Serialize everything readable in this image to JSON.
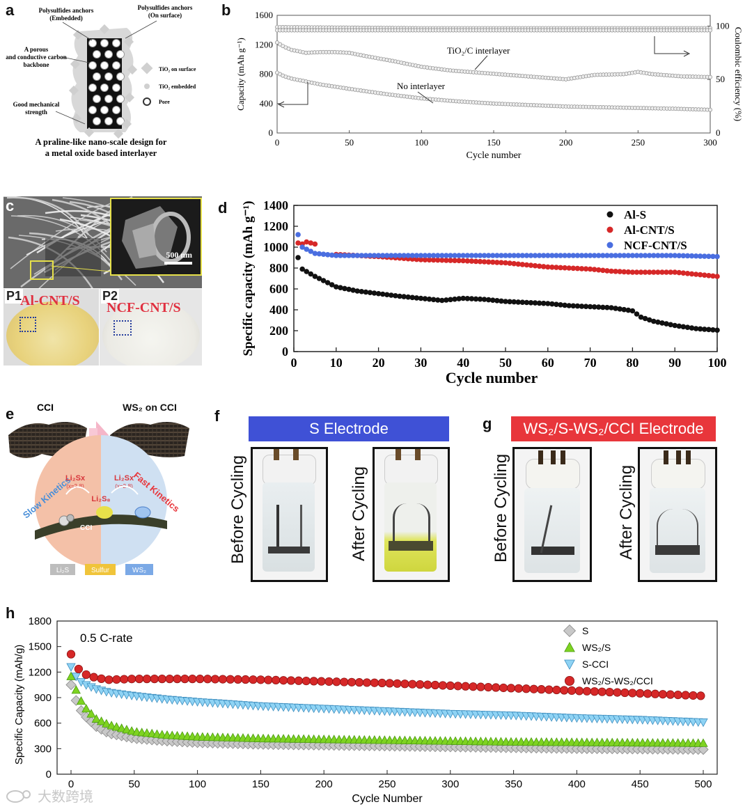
{
  "panels": {
    "a": {
      "letter": "a",
      "labels": {
        "anchors_embedded": "Polysulfides anchors (Embedded)",
        "anchors_surface": "Polysulfides anchors (On surface)",
        "porous_backbone": "A porous and conductive carbon backbone",
        "mechanical": "Good mechanical strength",
        "legend_surface": "TiO₂ on surface",
        "legend_embedded": "TiO₂ embedded",
        "legend_pore": "Pore",
        "caption_line1": "A praline-like nano-scale design for",
        "caption_line2": "a metal oxide based interlayer"
      }
    },
    "b": {
      "letter": "b",
      "annotation_tio2": "TiO₂/C interlayer",
      "annotation_none": "No interlayer"
    },
    "c": {
      "letter": "c",
      "scale_bar": "500 nm",
      "p1": "P1",
      "p2": "P2",
      "p1_text": "Al-CNT/S",
      "p2_text": "NCF-CNT/S"
    },
    "d": {
      "letter": "d"
    },
    "e": {
      "letter": "e",
      "cci": "CCI",
      "ws2_on_cci": "WS₂ on CCI",
      "slow": "Slow Kinetics",
      "fast": "Fast Kinetics",
      "li2sx_left": "Li₂Sx",
      "li2sx_right": "Li₂Sx",
      "x_range_left": "(x=2-8)",
      "x_range_right": "(x=2-8)",
      "li2s8": "Li₂S₈",
      "cci_rod": "CCI",
      "li2s": "Li₂S",
      "sulfur": "Sulfur",
      "ws2": "WS₂"
    },
    "f": {
      "letter": "f",
      "banner": "S Electrode",
      "before": "Before Cycling",
      "after": "After Cycling"
    },
    "g": {
      "letter": "g",
      "banner": "WS₂/S-WS₂/CCI Electrode",
      "before": "Before Cycling",
      "after": "After Cycling"
    },
    "h": {
      "letter": "h",
      "rate": "0.5 C-rate"
    }
  },
  "watermark": "大数跨境",
  "colors": {
    "red_banner": "#e8363b",
    "blue_banner": "#3f51d6",
    "series_red": "#d62828",
    "series_blue": "#4a6ee0",
    "series_black": "#111111",
    "series_green": "#7ed321",
    "series_cyan": "#8fd3f4",
    "series_gray": "#c8c8c8"
  },
  "chart_data": [
    {
      "id": "b",
      "type": "scatter",
      "xlabel": "Cycle number",
      "ylabel": "Capacity (mAh g⁻¹)",
      "ylabel_right": "Coulombic efficiency (%)",
      "xlim": [
        0,
        300
      ],
      "ylim": [
        0,
        1600
      ],
      "ylim_right": [
        0,
        110
      ],
      "xticks": [
        0,
        50,
        100,
        150,
        200,
        250,
        300
      ],
      "yticks": [
        0,
        400,
        800,
        1200,
        1600
      ],
      "yticks_right": [
        0,
        50,
        100
      ],
      "series": [
        {
          "name": "TiO₂/C interlayer capacity",
          "x": [
            0,
            5,
            10,
            20,
            30,
            40,
            50,
            60,
            80,
            100,
            120,
            140,
            160,
            180,
            200,
            210,
            220,
            240,
            250,
            260,
            280,
            300
          ],
          "values": [
            1230,
            1170,
            1130,
            1090,
            1100,
            1100,
            1090,
            1050,
            980,
            900,
            850,
            820,
            790,
            760,
            730,
            760,
            790,
            800,
            830,
            800,
            770,
            760
          ]
        },
        {
          "name": "No interlayer capacity",
          "x": [
            0,
            5,
            10,
            20,
            30,
            50,
            75,
            100,
            125,
            150,
            175,
            200,
            225,
            250,
            275,
            300
          ],
          "values": [
            820,
            770,
            740,
            700,
            660,
            600,
            530,
            470,
            430,
            400,
            380,
            360,
            350,
            340,
            330,
            315
          ]
        },
        {
          "name": "Coulombic efficiency TiO₂/C",
          "x": [
            0,
            100,
            200,
            300
          ],
          "values": [
            99,
            98,
            98,
            98
          ]
        },
        {
          "name": "Coulombic efficiency none",
          "x": [
            0,
            100,
            200,
            300
          ],
          "values": [
            96,
            96,
            96,
            96
          ]
        }
      ]
    },
    {
      "id": "d",
      "type": "scatter",
      "xlabel": "Cycle number",
      "ylabel": "Specific capacity (mAh g⁻¹)",
      "xlim": [
        0,
        100
      ],
      "ylim": [
        0,
        1400
      ],
      "xticks": [
        0,
        10,
        20,
        30,
        40,
        50,
        60,
        70,
        80,
        90,
        100
      ],
      "yticks": [
        0,
        200,
        400,
        600,
        800,
        1000,
        1200,
        1400
      ],
      "legend": [
        "Al-S",
        "Al-CNT/S",
        "NCF-CNT/S"
      ],
      "series": [
        {
          "name": "Al-S",
          "x": [
            1,
            2,
            5,
            10,
            15,
            20,
            25,
            30,
            35,
            40,
            45,
            50,
            55,
            60,
            65,
            70,
            75,
            80,
            82,
            85,
            90,
            95,
            100
          ],
          "values": [
            900,
            790,
            720,
            620,
            580,
            555,
            530,
            510,
            490,
            510,
            500,
            480,
            470,
            460,
            440,
            430,
            420,
            390,
            330,
            290,
            250,
            220,
            205
          ]
        },
        {
          "name": "Al-CNT/S",
          "x": [
            1,
            2,
            3,
            5,
            10,
            20,
            30,
            40,
            50,
            60,
            70,
            75,
            80,
            90,
            100
          ],
          "values": [
            1040,
            1030,
            1050,
            1030,
            930,
            910,
            880,
            870,
            850,
            810,
            790,
            770,
            760,
            760,
            720
          ]
        },
        {
          "name": "NCF-CNT/S",
          "x": [
            1,
            2,
            5,
            10,
            20,
            30,
            40,
            50,
            60,
            70,
            80,
            90,
            100
          ],
          "values": [
            1120,
            1000,
            940,
            920,
            920,
            920,
            920,
            920,
            920,
            920,
            920,
            920,
            910
          ]
        }
      ]
    },
    {
      "id": "h",
      "type": "scatter",
      "xlabel": "Cycle Number",
      "ylabel": "Specific Capacity (mAh/g)",
      "xlim": [
        0,
        500
      ],
      "ylim": [
        0,
        1800
      ],
      "xticks": [
        0,
        50,
        100,
        150,
        200,
        250,
        300,
        350,
        400,
        450,
        500
      ],
      "yticks": [
        0,
        300,
        600,
        900,
        1200,
        1500,
        1800
      ],
      "legend": [
        "S",
        "WS₂/S",
        "S-CCI",
        "WS₂/S-WS₂/CCI"
      ],
      "series": [
        {
          "name": "S",
          "x": [
            0,
            5,
            10,
            20,
            30,
            50,
            75,
            100,
            150,
            200,
            250,
            300,
            350,
            400,
            450,
            500
          ],
          "values": [
            1050,
            820,
            700,
            560,
            480,
            420,
            390,
            370,
            350,
            340,
            330,
            320,
            310,
            300,
            295,
            290
          ]
        },
        {
          "name": "WS₂/S",
          "x": [
            0,
            5,
            10,
            20,
            30,
            50,
            75,
            100,
            150,
            200,
            250,
            300,
            350,
            400,
            450,
            500
          ],
          "values": [
            1150,
            950,
            800,
            650,
            580,
            500,
            460,
            440,
            420,
            410,
            400,
            390,
            380,
            375,
            370,
            365
          ]
        },
        {
          "name": "S-CCI",
          "x": [
            0,
            5,
            10,
            20,
            30,
            50,
            75,
            100,
            150,
            200,
            250,
            300,
            350,
            400,
            450,
            500
          ],
          "values": [
            1260,
            1120,
            1060,
            1000,
            960,
            920,
            880,
            850,
            800,
            770,
            740,
            710,
            690,
            660,
            640,
            610
          ]
        },
        {
          "name": "WS₂/S-WS₂/CCI",
          "x": [
            0,
            5,
            10,
            20,
            30,
            50,
            75,
            100,
            150,
            200,
            250,
            300,
            350,
            400,
            450,
            500
          ],
          "values": [
            1410,
            1250,
            1180,
            1130,
            1110,
            1120,
            1120,
            1120,
            1110,
            1090,
            1070,
            1040,
            1010,
            980,
            950,
            920
          ]
        }
      ]
    }
  ]
}
